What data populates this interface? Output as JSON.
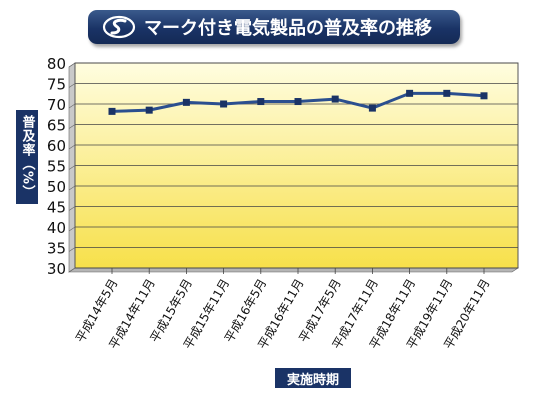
{
  "chart_data": {
    "type": "line",
    "title": "マーク付き電気製品の普及率の推移",
    "xlabel": "実施時期",
    "ylabel": "普及率（%）",
    "categories": [
      "平成14年5月",
      "平成14年11月",
      "平成15年5月",
      "平成15年11月",
      "平成16年5月",
      "平成16年11月",
      "平成17年5月",
      "平成17年11月",
      "平成18年11月",
      "平成19年11月",
      "平成20年11月"
    ],
    "series": [
      {
        "name": "",
        "values": [
          68.2,
          68.5,
          70.4,
          70.0,
          70.6,
          70.6,
          71.2,
          69.0,
          72.6,
          72.6,
          72.0
        ]
      }
    ],
    "ylim": [
      30,
      80
    ],
    "yticks": [
      30,
      35,
      40,
      45,
      50,
      55,
      60,
      65,
      70,
      75,
      80
    ],
    "grid": true,
    "colors": {
      "line": "#2b4f8f",
      "marker": "#1a3366",
      "plot_top": "#fffde0",
      "plot_bottom": "#f7e04a",
      "banner": "#1a3366"
    }
  }
}
